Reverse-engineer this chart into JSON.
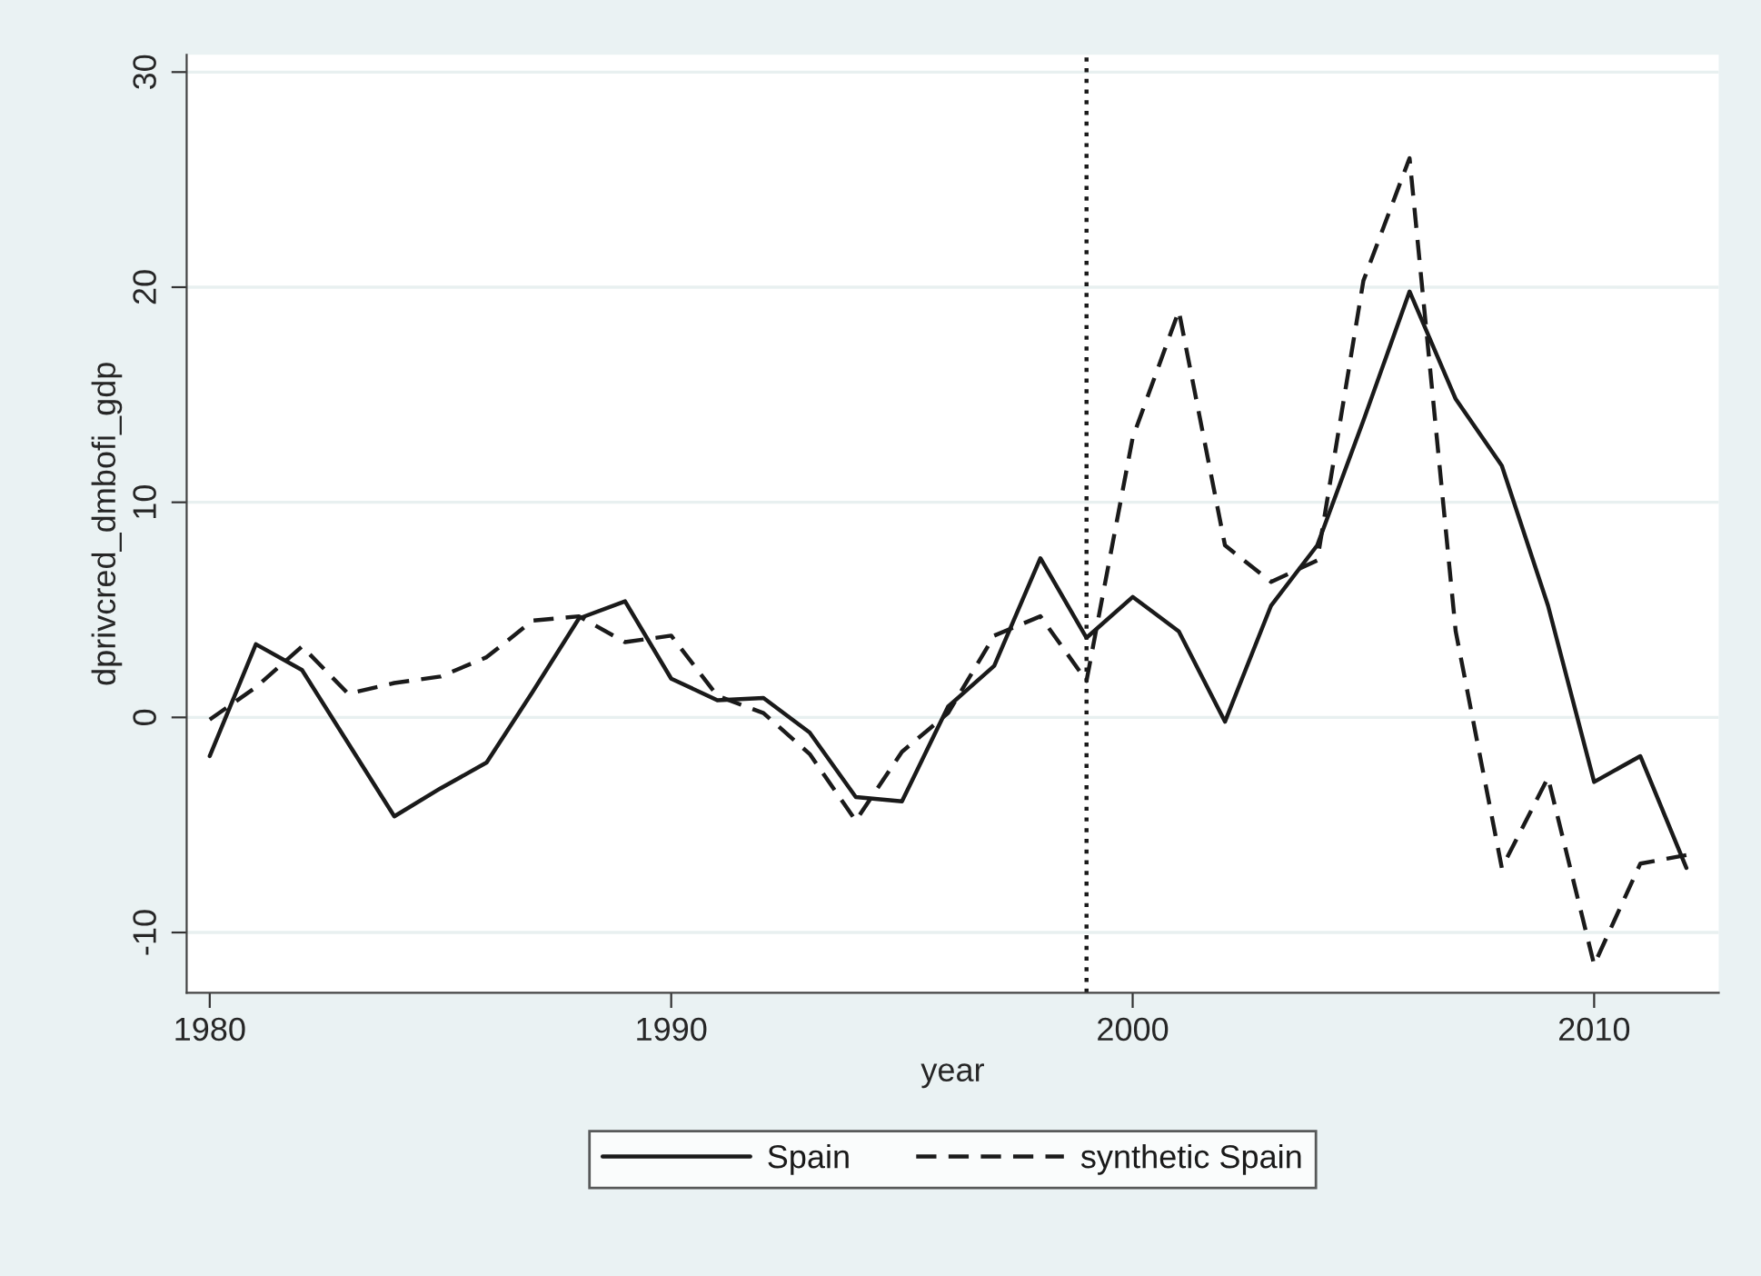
{
  "chart_data": {
    "type": "line",
    "xlabel": "year",
    "ylabel": "dprivcred_dmbofi_gdp",
    "x": [
      1980,
      1981,
      1982,
      1983,
      1984,
      1985,
      1986,
      1987,
      1988,
      1989,
      1990,
      1991,
      1992,
      1993,
      1994,
      1995,
      1996,
      1997,
      1998,
      1999,
      2000,
      2001,
      2002,
      2003,
      2004,
      2005,
      2006,
      2007,
      2008,
      2009,
      2010,
      2011,
      2012
    ],
    "series": [
      {
        "name": "Spain",
        "color": "#1a1a1a",
        "line_style": "solid",
        "values": [
          -1.8,
          3.4,
          2.2,
          -1.2,
          -4.6,
          -3.3,
          -2.1,
          1.2,
          4.6,
          5.4,
          1.8,
          0.8,
          0.9,
          -0.7,
          -3.7,
          -3.9,
          0.5,
          2.4,
          7.4,
          3.7,
          5.6,
          4.0,
          -0.2,
          5.2,
          8.0,
          13.8,
          19.8,
          14.8,
          11.7,
          5.2,
          -3.0,
          -1.8,
          -7.0
        ]
      },
      {
        "name": "synthetic Spain",
        "color": "#1a1a1a",
        "line_style": "dashed",
        "values": [
          -0.1,
          1.4,
          3.3,
          1.1,
          1.6,
          1.9,
          2.8,
          4.5,
          4.7,
          3.5,
          3.8,
          1.0,
          0.2,
          -1.7,
          -4.8,
          -1.6,
          0.2,
          3.8,
          4.7,
          1.7,
          13.0,
          18.9,
          8.0,
          6.3,
          7.3,
          20.3,
          26.0,
          4.0,
          -7.0,
          -2.8,
          -11.5,
          -6.8,
          -6.4
        ]
      }
    ],
    "xlim": [
      1979.5,
      2012.7
    ],
    "ylim": [
      -12.8,
      30.8
    ],
    "xticks": [
      1980,
      1990,
      2000,
      2010
    ],
    "yticks": [
      -10,
      0,
      10,
      20,
      30
    ],
    "grid": "y",
    "legend": "bottom",
    "marker": "none",
    "ref_lines": [
      {
        "axis": "x",
        "value": 1999,
        "line_style": "dotted",
        "color": "#1a1a1a"
      }
    ]
  }
}
